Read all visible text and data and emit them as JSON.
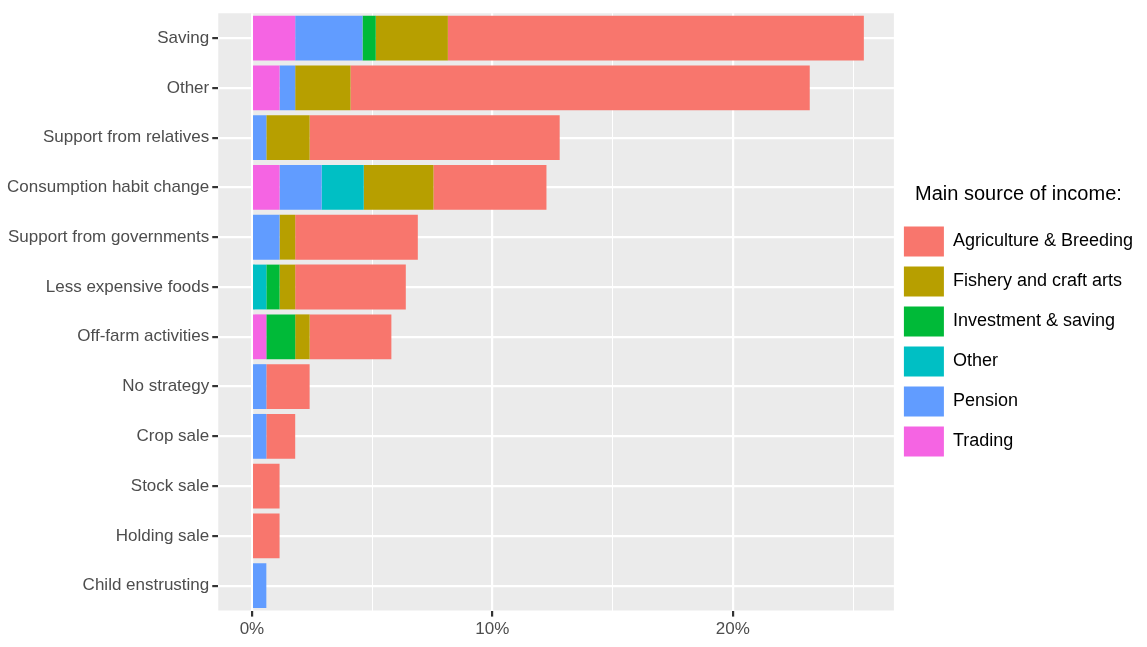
{
  "chart_data": {
    "type": "bar",
    "orientation": "horizontal",
    "stacked": true,
    "legend": "right",
    "legend_title": "Main source of income:",
    "grid": true,
    "categories": [
      "Saving",
      "Other",
      "Support from relatives",
      "Consumption habit change",
      "Support from governments",
      "Less expensive foods",
      "Off-farm activities",
      "No strategy",
      "Crop sale",
      "Stock sale",
      "Holding sale",
      "Child enstrusting"
    ],
    "xlim": [
      -1.4,
      26.7
    ],
    "xticks": [
      {
        "value": 0,
        "label": "0%"
      },
      {
        "value": 5,
        "label": null
      },
      {
        "value": 10,
        "label": "10%"
      },
      {
        "value": 15,
        "label": null
      },
      {
        "value": 20,
        "label": "20%"
      },
      {
        "value": 25,
        "label": null
      }
    ],
    "series": [
      {
        "name": "Trading",
        "color": "#f564e3",
        "values": [
          1.8,
          1.15,
          null,
          1.15,
          null,
          null,
          0.6,
          null,
          null,
          null,
          null,
          null
        ]
      },
      {
        "name": "Pension",
        "color": "#619cff",
        "values": [
          2.8,
          0.65,
          0.6,
          1.75,
          1.15,
          null,
          null,
          0.6,
          0.6,
          null,
          null,
          0.6
        ]
      },
      {
        "name": "Other",
        "color": "#00bfc4",
        "values": [
          null,
          null,
          null,
          1.75,
          null,
          0.6,
          null,
          null,
          null,
          null,
          null,
          null
        ]
      },
      {
        "name": "Investment & saving",
        "color": "#00ba38",
        "values": [
          0.55,
          null,
          null,
          null,
          null,
          0.55,
          1.2,
          null,
          null,
          null,
          null,
          null
        ]
      },
      {
        "name": "Fishery and craft arts",
        "color": "#b79f00",
        "values": [
          3.0,
          2.3,
          1.8,
          2.9,
          0.65,
          0.65,
          0.6,
          null,
          null,
          null,
          null,
          null
        ]
      },
      {
        "name": "Agriculture & Breeding",
        "color": "#f8766d",
        "values": [
          17.3,
          19.1,
          10.4,
          4.7,
          5.1,
          4.6,
          3.4,
          1.8,
          1.2,
          1.15,
          1.15,
          null
        ]
      }
    ]
  }
}
